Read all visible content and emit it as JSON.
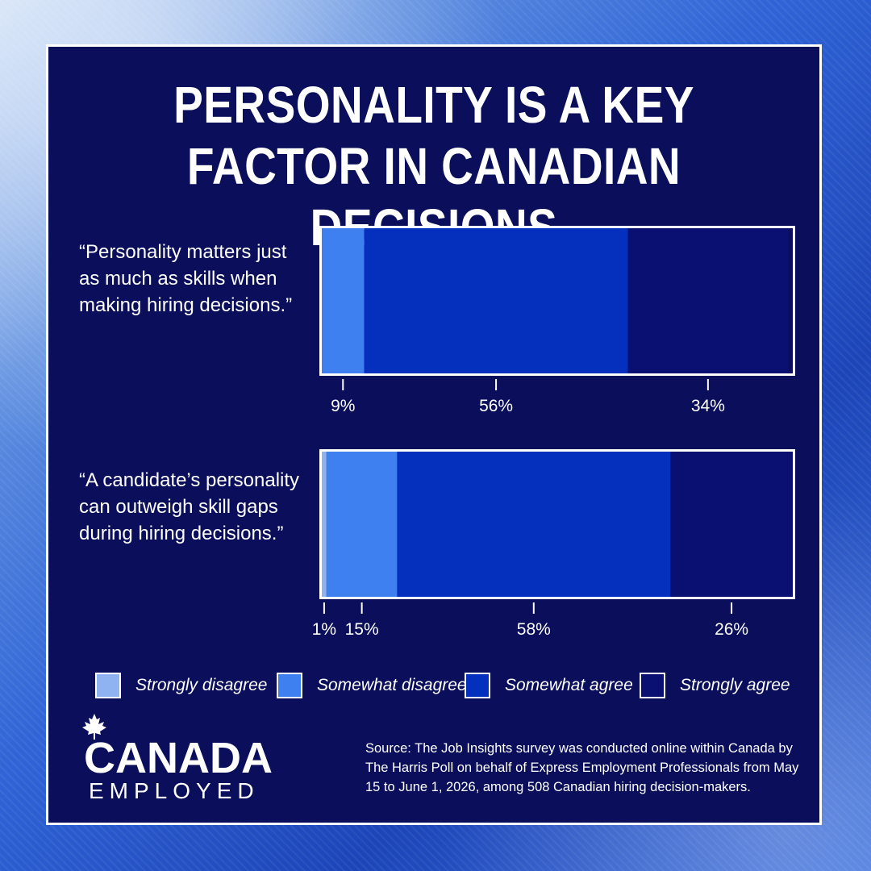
{
  "title": "PERSONALITY IS A KEY FACTOR IN CANADIAN DECISIONS",
  "colors": {
    "panel": "#0b0e5a",
    "strongly_disagree": "#8fb2f0",
    "somewhat_disagree": "#3f80f0",
    "somewhat_agree": "#0530be",
    "strongly_agree": "#0a0f72",
    "text": "#ffffff"
  },
  "chart_data": {
    "type": "bar",
    "orientation": "horizontal",
    "stacked": true,
    "xlim": [
      0,
      100
    ],
    "series": [
      {
        "name": "Strongly disagree",
        "color_key": "strongly_disagree"
      },
      {
        "name": "Somewhat disagree",
        "color_key": "somewhat_disagree"
      },
      {
        "name": "Somewhat agree",
        "color_key": "somewhat_agree"
      },
      {
        "name": "Strongly agree",
        "color_key": "strongly_agree"
      }
    ],
    "rows": [
      {
        "statement": "“Personality matters just as much as skills when making hiring decisions.”",
        "statement_lines": [
          "“Personality matters just",
          "as much as skills when",
          "making hiring decisions.”"
        ],
        "values": [
          0,
          9,
          56,
          34
        ],
        "labels": [
          "",
          "9%",
          "56%",
          "34%"
        ]
      },
      {
        "statement": "“A candidate’s personality can outweigh skill gaps during hiring decisions.”",
        "statement_lines": [
          "“A candidate’s personality",
          "can outweigh skill gaps",
          "during hiring decisions.”"
        ],
        "values": [
          1,
          15,
          58,
          26
        ],
        "labels": [
          "1%",
          "15%",
          "58%",
          "26%"
        ]
      }
    ],
    "legend": [
      "Strongly disagree",
      "Somewhat disagree",
      "Somewhat agree",
      "Strongly agree"
    ],
    "legend_position": "bottom",
    "grid": false
  },
  "logo": {
    "line1": "CANADA",
    "line2": "EMPLOYED",
    "icon": "maple-leaf-icon"
  },
  "source": "Source: The Job Insights survey was conducted online within Canada by The Harris Poll on behalf of Express Employment Professionals from May 15 to June 1, 2026, among 508 Canadian hiring decision-makers."
}
